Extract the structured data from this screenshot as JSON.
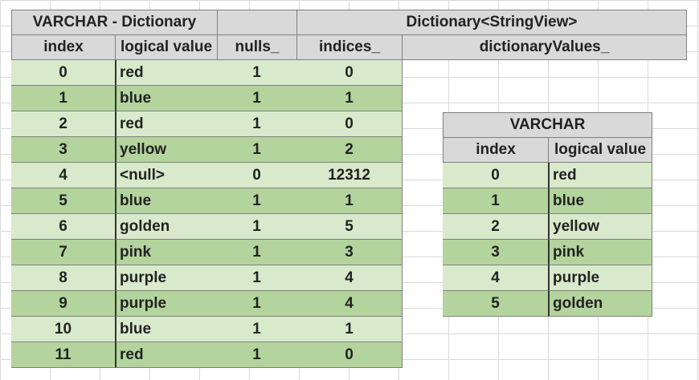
{
  "left_table": {
    "title": "VARCHAR - Dictionary",
    "dict_title": "Dictionary<StringView>",
    "headers": {
      "index": "index",
      "logical_value": "logical value",
      "nulls": "nulls_",
      "indices": "indices_",
      "dictionary_values": "dictionaryValues_"
    },
    "rows": [
      {
        "index": "0",
        "value": "red",
        "null": "1",
        "idx": "0"
      },
      {
        "index": "1",
        "value": "blue",
        "null": "1",
        "idx": "1"
      },
      {
        "index": "2",
        "value": "red",
        "null": "1",
        "idx": "0"
      },
      {
        "index": "3",
        "value": "yellow",
        "null": "1",
        "idx": "2"
      },
      {
        "index": "4",
        "value": "<null>",
        "null": "0",
        "idx": "12312"
      },
      {
        "index": "5",
        "value": "blue",
        "null": "1",
        "idx": "1"
      },
      {
        "index": "6",
        "value": "golden",
        "null": "1",
        "idx": "5"
      },
      {
        "index": "7",
        "value": "pink",
        "null": "1",
        "idx": "3"
      },
      {
        "index": "8",
        "value": "purple",
        "null": "1",
        "idx": "4"
      },
      {
        "index": "9",
        "value": "purple",
        "null": "1",
        "idx": "4"
      },
      {
        "index": "10",
        "value": "blue",
        "null": "1",
        "idx": "1"
      },
      {
        "index": "11",
        "value": "red",
        "null": "1",
        "idx": "0"
      }
    ]
  },
  "right_table": {
    "title": "VARCHAR",
    "headers": {
      "index": "index",
      "logical_value": "logical value"
    },
    "rows": [
      {
        "index": "0",
        "value": "red"
      },
      {
        "index": "1",
        "value": "blue"
      },
      {
        "index": "2",
        "value": "yellow"
      },
      {
        "index": "3",
        "value": "pink"
      },
      {
        "index": "4",
        "value": "purple"
      },
      {
        "index": "5",
        "value": "golden"
      }
    ]
  }
}
